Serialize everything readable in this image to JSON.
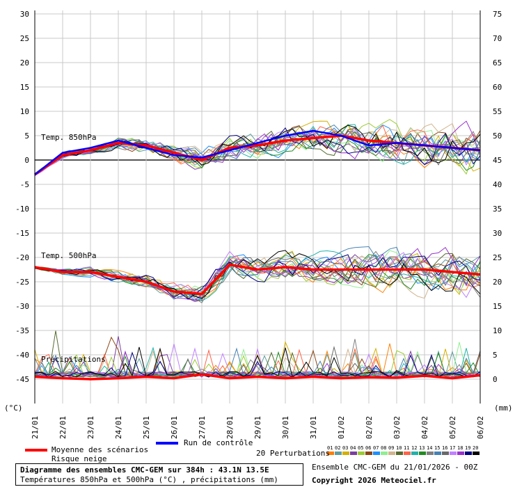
{
  "chart_data": {
    "type": "line",
    "title": "Diagramme des ensembles CMC-GEM sur 384h : 43.1N 13.5E",
    "subtitle": "Températures 850hPa et 500hPa (°C) , précipitations (mm)",
    "ylabel_left": "(°C)",
    "ylabel_right": "(mm)",
    "ylim_left": [
      -50,
      32
    ],
    "y_ticks_left": [
      30,
      25,
      20,
      15,
      10,
      5,
      0,
      -5,
      -10,
      -15,
      -20,
      -25,
      -30,
      -35,
      -40,
      -45
    ],
    "y_ticks_right": [
      75,
      70,
      65,
      60,
      55,
      50,
      45,
      40,
      35,
      30,
      25,
      20,
      15,
      10,
      5,
      0
    ],
    "x_ticks": [
      "21/01",
      "22/01",
      "23/01",
      "24/01",
      "25/01",
      "26/01",
      "27/01",
      "28/01",
      "29/01",
      "30/01",
      "31/01",
      "01/02",
      "02/02",
      "03/02",
      "04/02",
      "05/02",
      "06/02"
    ],
    "grid": true,
    "annotations": [
      "Temp. 850hPa",
      "Temp. 500hPa",
      "Précipitations"
    ],
    "series": [
      {
        "name": "Moyenne des scénarios",
        "group": "850hPa",
        "color": "#ff0000",
        "values": [
          -3,
          1,
          2,
          3.5,
          3,
          1.5,
          0,
          2.5,
          3,
          4,
          4.5,
          5,
          4,
          3.5,
          3,
          2.5,
          2
        ]
      },
      {
        "name": "Run de contrôle",
        "group": "850hPa",
        "color": "#0000ff",
        "values": [
          -3,
          1.5,
          2.5,
          4,
          2.5,
          1,
          0.5,
          2,
          3.5,
          5,
          6,
          5,
          3,
          3.5,
          3,
          2.5,
          2
        ]
      },
      {
        "name": "Moyenne des scénarios",
        "group": "500hPa",
        "color": "#ff0000",
        "values": [
          -22,
          -23,
          -23,
          -24,
          -25,
          -27,
          -27.5,
          -21.5,
          -22.5,
          -22,
          -22.5,
          -22.5,
          -22.5,
          -22.5,
          -22.5,
          -23,
          -23.5
        ]
      },
      {
        "name": "Moyenne des scénarios",
        "group": "Précipitations",
        "color": "#ff0000",
        "values": [
          -44.5,
          -44.8,
          -45,
          -44.8,
          -44.5,
          -44.8,
          -44,
          -44.8,
          -44.5,
          -44.8,
          -44.5,
          -44.8,
          -44.6,
          -44.7,
          -44.3,
          -44.8,
          -44.2
        ]
      }
    ]
  },
  "legend": {
    "mean_label": "Moyenne des scénarios",
    "snow_label": "Risque neige",
    "control_label": "Run de contrôle",
    "perturbations_label": "20 Perturbations",
    "perturbation_numbers": [
      "01",
      "02",
      "03",
      "04",
      "05",
      "06",
      "07",
      "08",
      "09",
      "10",
      "11",
      "12",
      "13",
      "14",
      "15",
      "16",
      "17",
      "18",
      "19",
      "20"
    ],
    "perturbation_colors": [
      "#ff7f00",
      "#5f9ea0",
      "#d4b000",
      "#7b3fa0",
      "#9acd32",
      "#8b4513",
      "#1e90ff",
      "#90ee90",
      "#d2b48c",
      "#556b2f",
      "#ff6347",
      "#20b2aa",
      "#228b22",
      "#808080",
      "#4682b4",
      "#696969",
      "#c080ff",
      "#9932cc",
      "#000080",
      "#000000"
    ],
    "mean_color": "#ff0000",
    "control_color": "#0000ff"
  },
  "info": {
    "ensemble": "Ensemble CMC-GEM du 21/01/2026 - 00Z",
    "copyright": "Copyright 2026 Meteociel.fr"
  }
}
